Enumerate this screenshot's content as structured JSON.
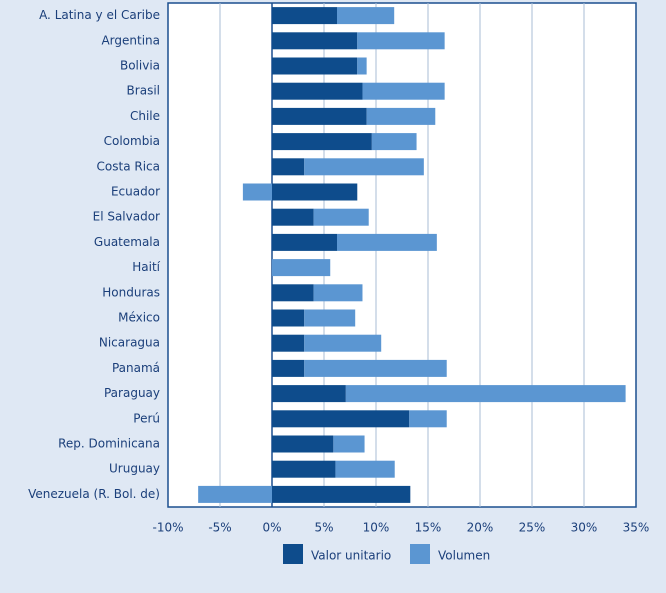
{
  "chart_data": {
    "type": "bar",
    "orientation": "horizontal",
    "stacked": true,
    "categories": [
      "A. Latina y el Caribe",
      "Argentina",
      "Bolivia",
      "Brasil",
      "Chile",
      "Colombia",
      "Costa Rica",
      "Ecuador",
      "El Salvador",
      "Guatemala",
      "Haití",
      "Honduras",
      "México",
      "Nicaragua",
      "Panamá",
      "Paraguay",
      "Perú",
      "Rep. Dominicana",
      "Uruguay",
      "Venezuela (R. Bol. de)"
    ],
    "series": [
      {
        "name": "Valor unitario",
        "color": "#0e4c8c",
        "values": [
          6.25,
          8.2,
          8.2,
          8.7,
          9.1,
          9.6,
          3.1,
          8.2,
          4.0,
          6.25,
          0,
          4.0,
          3.1,
          3.1,
          3.1,
          7.1,
          13.2,
          5.9,
          6.1,
          13.3
        ]
      },
      {
        "name": "Volumen",
        "color": "#5b96d2",
        "values": [
          5.5,
          8.4,
          0.9,
          7.9,
          6.6,
          4.3,
          11.5,
          -2.8,
          5.3,
          9.6,
          5.6,
          4.7,
          4.9,
          7.4,
          13.7,
          26.9,
          3.6,
          3.0,
          5.7,
          -7.1
        ]
      }
    ],
    "xlim": [
      -10,
      35
    ],
    "xticks": [
      {
        "value": -10,
        "label": "-10%"
      },
      {
        "value": -5,
        "label": "-5%"
      },
      {
        "value": 0,
        "label": "0%"
      },
      {
        "value": 5,
        "label": "5%"
      },
      {
        "value": 10,
        "label": "10%"
      },
      {
        "value": 15,
        "label": "15%"
      },
      {
        "value": 20,
        "label": "20%"
      },
      {
        "value": 25,
        "label": "25%"
      },
      {
        "value": 30,
        "label": "30%"
      },
      {
        "value": 35,
        "label": "35%"
      }
    ],
    "grid": true,
    "legend": "bottom"
  }
}
